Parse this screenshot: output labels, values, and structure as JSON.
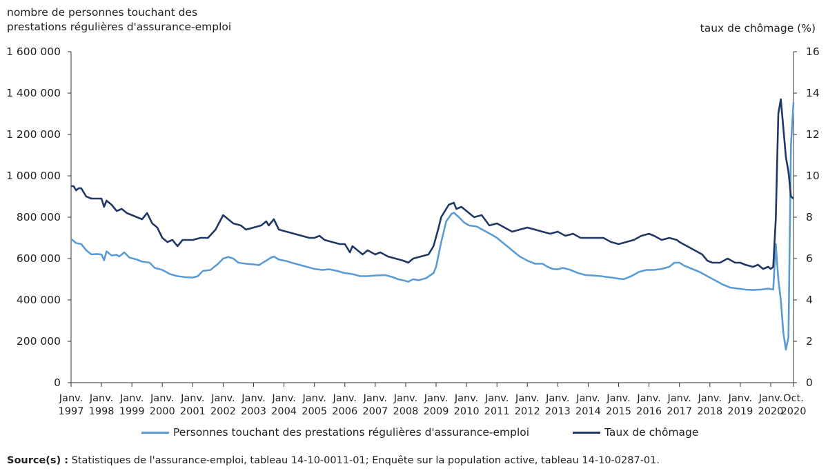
{
  "chart_data": {
    "type": "line",
    "title": "",
    "ylabel": "nombre de personnes touchant des prestations régulières d'assurance-emploi",
    "y2label": "taux de chômage (%)",
    "ylim": [
      0,
      1600000
    ],
    "y2lim": [
      0,
      16
    ],
    "yticks": [
      "0",
      "200 000",
      "400 000",
      "600 000",
      "800 000",
      "1 000 000",
      "1 200 000",
      "1 400 000",
      "1 600 000"
    ],
    "y2ticks": [
      "0",
      "2",
      "4",
      "6",
      "8",
      "10",
      "12",
      "14",
      "16"
    ],
    "xticks": [
      {
        "label1": "Janv.",
        "label2": "1997"
      },
      {
        "label1": "Janv.",
        "label2": "1998"
      },
      {
        "label1": "Janv.",
        "label2": "1999"
      },
      {
        "label1": "Janv.",
        "label2": "2000"
      },
      {
        "label1": "Janv.",
        "label2": "2001"
      },
      {
        "label1": "Janv.",
        "label2": "2002"
      },
      {
        "label1": "Janv.",
        "label2": "2003"
      },
      {
        "label1": "Janv.",
        "label2": "2004"
      },
      {
        "label1": "Janv.",
        "label2": "2005"
      },
      {
        "label1": "Janv.",
        "label2": "2006"
      },
      {
        "label1": "Janv.",
        "label2": "2007"
      },
      {
        "label1": "Janv.",
        "label2": "2008"
      },
      {
        "label1": "Janv.",
        "label2": "2009"
      },
      {
        "label1": "Janv.",
        "label2": "2010"
      },
      {
        "label1": "Janv.",
        "label2": "2011"
      },
      {
        "label1": "Janv.",
        "label2": "2012"
      },
      {
        "label1": "Janv.",
        "label2": "2013"
      },
      {
        "label1": "Janv.",
        "label2": "2014"
      },
      {
        "label1": "Janv.",
        "label2": "2015"
      },
      {
        "label1": "Janv.",
        "label2": "2016"
      },
      {
        "label1": "Janv.",
        "label2": "2017"
      },
      {
        "label1": "Janv.",
        "label2": "2018"
      },
      {
        "label1": "Janv.",
        "label2": "2019"
      },
      {
        "label1": "Janv.",
        "label2": "2020"
      },
      {
        "label1": "Oct.",
        "label2": "2020"
      }
    ],
    "x_start": "1997-01",
    "x_end": "2020-10",
    "legend_placement": "bottom",
    "grid": false,
    "series": [
      {
        "name": "Personnes touchant des prestations régulières d'assurance-emploi",
        "axis": "left",
        "color": "#5b9bd5",
        "points": [
          [
            "1997-01",
            695000
          ],
          [
            "1997-03",
            675000
          ],
          [
            "1997-05",
            670000
          ],
          [
            "1997-07",
            640000
          ],
          [
            "1997-09",
            620000
          ],
          [
            "1997-11",
            622000
          ],
          [
            "1998-01",
            620000
          ],
          [
            "1998-02",
            592000
          ],
          [
            "1998-03",
            635000
          ],
          [
            "1998-05",
            615000
          ],
          [
            "1998-07",
            618000
          ],
          [
            "1998-08",
            610000
          ],
          [
            "1998-10",
            630000
          ],
          [
            "1998-12",
            605000
          ],
          [
            "1999-03",
            595000
          ],
          [
            "1999-05",
            585000
          ],
          [
            "1999-08",
            580000
          ],
          [
            "1999-10",
            555000
          ],
          [
            "2000-01",
            545000
          ],
          [
            "2000-04",
            525000
          ],
          [
            "2000-07",
            515000
          ],
          [
            "2000-10",
            510000
          ],
          [
            "2001-01",
            508000
          ],
          [
            "2001-03",
            515000
          ],
          [
            "2001-05",
            540000
          ],
          [
            "2001-08",
            545000
          ],
          [
            "2001-11",
            575000
          ],
          [
            "2002-01",
            600000
          ],
          [
            "2002-03",
            608000
          ],
          [
            "2002-05",
            600000
          ],
          [
            "2002-07",
            580000
          ],
          [
            "2002-10",
            575000
          ],
          [
            "2003-01",
            572000
          ],
          [
            "2003-03",
            568000
          ],
          [
            "2003-06",
            590000
          ],
          [
            "2003-08",
            605000
          ],
          [
            "2003-09",
            610000
          ],
          [
            "2003-11",
            595000
          ],
          [
            "2004-02",
            588000
          ],
          [
            "2004-04",
            580000
          ],
          [
            "2004-07",
            570000
          ],
          [
            "2004-10",
            560000
          ],
          [
            "2005-01",
            550000
          ],
          [
            "2005-04",
            545000
          ],
          [
            "2005-07",
            548000
          ],
          [
            "2005-10",
            540000
          ],
          [
            "2006-01",
            530000
          ],
          [
            "2006-04",
            525000
          ],
          [
            "2006-07",
            515000
          ],
          [
            "2006-10",
            515000
          ],
          [
            "2007-01",
            518000
          ],
          [
            "2007-05",
            520000
          ],
          [
            "2007-08",
            510000
          ],
          [
            "2007-10",
            500000
          ],
          [
            "2008-01",
            492000
          ],
          [
            "2008-02",
            488000
          ],
          [
            "2008-04",
            500000
          ],
          [
            "2008-06",
            495000
          ],
          [
            "2008-09",
            505000
          ],
          [
            "2008-12",
            530000
          ],
          [
            "2009-01",
            560000
          ],
          [
            "2009-03",
            680000
          ],
          [
            "2009-05",
            780000
          ],
          [
            "2009-07",
            815000
          ],
          [
            "2009-08",
            822000
          ],
          [
            "2009-10",
            800000
          ],
          [
            "2009-12",
            775000
          ],
          [
            "2010-02",
            760000
          ],
          [
            "2010-05",
            755000
          ],
          [
            "2010-08",
            735000
          ],
          [
            "2010-11",
            715000
          ],
          [
            "2011-01",
            700000
          ],
          [
            "2011-04",
            670000
          ],
          [
            "2011-07",
            640000
          ],
          [
            "2011-10",
            610000
          ],
          [
            "2012-01",
            590000
          ],
          [
            "2012-04",
            575000
          ],
          [
            "2012-07",
            575000
          ],
          [
            "2012-09",
            560000
          ],
          [
            "2012-11",
            550000
          ],
          [
            "2013-01",
            548000
          ],
          [
            "2013-03",
            555000
          ],
          [
            "2013-06",
            545000
          ],
          [
            "2013-09",
            530000
          ],
          [
            "2013-12",
            520000
          ],
          [
            "2014-03",
            518000
          ],
          [
            "2014-06",
            515000
          ],
          [
            "2014-09",
            510000
          ],
          [
            "2014-12",
            505000
          ],
          [
            "2015-03",
            500000
          ],
          [
            "2015-06",
            515000
          ],
          [
            "2015-09",
            535000
          ],
          [
            "2015-12",
            545000
          ],
          [
            "2016-03",
            545000
          ],
          [
            "2016-06",
            550000
          ],
          [
            "2016-09",
            560000
          ],
          [
            "2016-11",
            580000
          ],
          [
            "2017-01",
            580000
          ],
          [
            "2017-03",
            565000
          ],
          [
            "2017-06",
            550000
          ],
          [
            "2017-09",
            535000
          ],
          [
            "2017-12",
            515000
          ],
          [
            "2018-03",
            495000
          ],
          [
            "2018-06",
            475000
          ],
          [
            "2018-09",
            460000
          ],
          [
            "2018-12",
            455000
          ],
          [
            "2019-03",
            450000
          ],
          [
            "2019-06",
            448000
          ],
          [
            "2019-09",
            450000
          ],
          [
            "2019-12",
            455000
          ],
          [
            "2020-01",
            452000
          ],
          [
            "2020-02",
            450000
          ],
          [
            "2020-03",
            670000
          ],
          [
            "2020-04",
            500000
          ],
          [
            "2020-05",
            400000
          ],
          [
            "2020-06",
            240000
          ],
          [
            "2020-07",
            160000
          ],
          [
            "2020-08",
            220000
          ],
          [
            "2020-09",
            1150000
          ],
          [
            "2020-10",
            1355000
          ]
        ]
      },
      {
        "name": "Taux de chômage",
        "axis": "right",
        "color": "#1f3864",
        "points": [
          [
            "1997-01",
            9.5
          ],
          [
            "1997-02",
            9.5
          ],
          [
            "1997-03",
            9.3
          ],
          [
            "1997-04",
            9.4
          ],
          [
            "1997-05",
            9.4
          ],
          [
            "1997-07",
            9.0
          ],
          [
            "1997-09",
            8.9
          ],
          [
            "1997-11",
            8.9
          ],
          [
            "1998-01",
            8.9
          ],
          [
            "1998-02",
            8.5
          ],
          [
            "1998-03",
            8.8
          ],
          [
            "1998-05",
            8.6
          ],
          [
            "1998-07",
            8.3
          ],
          [
            "1998-09",
            8.4
          ],
          [
            "1998-11",
            8.2
          ],
          [
            "1999-01",
            8.1
          ],
          [
            "1999-03",
            8.0
          ],
          [
            "1999-05",
            7.9
          ],
          [
            "1999-07",
            8.2
          ],
          [
            "1999-09",
            7.7
          ],
          [
            "1999-11",
            7.5
          ],
          [
            "2000-01",
            7.0
          ],
          [
            "2000-03",
            6.8
          ],
          [
            "2000-05",
            6.9
          ],
          [
            "2000-07",
            6.6
          ],
          [
            "2000-09",
            6.9
          ],
          [
            "2000-11",
            6.9
          ],
          [
            "2001-01",
            6.9
          ],
          [
            "2001-04",
            7.0
          ],
          [
            "2001-07",
            7.0
          ],
          [
            "2001-10",
            7.4
          ],
          [
            "2002-01",
            8.1
          ],
          [
            "2002-03",
            7.9
          ],
          [
            "2002-05",
            7.7
          ],
          [
            "2002-08",
            7.6
          ],
          [
            "2002-10",
            7.4
          ],
          [
            "2003-01",
            7.5
          ],
          [
            "2003-04",
            7.6
          ],
          [
            "2003-06",
            7.8
          ],
          [
            "2003-07",
            7.6
          ],
          [
            "2003-09",
            7.9
          ],
          [
            "2003-11",
            7.4
          ],
          [
            "2004-02",
            7.3
          ],
          [
            "2004-05",
            7.2
          ],
          [
            "2004-08",
            7.1
          ],
          [
            "2004-11",
            7.0
          ],
          [
            "2005-01",
            7.0
          ],
          [
            "2005-03",
            7.1
          ],
          [
            "2005-05",
            6.9
          ],
          [
            "2005-08",
            6.8
          ],
          [
            "2005-11",
            6.7
          ],
          [
            "2006-01",
            6.7
          ],
          [
            "2006-03",
            6.3
          ],
          [
            "2006-04",
            6.6
          ],
          [
            "2006-06",
            6.4
          ],
          [
            "2006-08",
            6.2
          ],
          [
            "2006-10",
            6.4
          ],
          [
            "2007-01",
            6.2
          ],
          [
            "2007-03",
            6.3
          ],
          [
            "2007-06",
            6.1
          ],
          [
            "2007-09",
            6.0
          ],
          [
            "2007-12",
            5.9
          ],
          [
            "2008-02",
            5.8
          ],
          [
            "2008-04",
            6.0
          ],
          [
            "2008-07",
            6.1
          ],
          [
            "2008-10",
            6.2
          ],
          [
            "2008-12",
            6.6
          ],
          [
            "2009-02",
            7.5
          ],
          [
            "2009-03",
            8.0
          ],
          [
            "2009-04",
            8.2
          ],
          [
            "2009-06",
            8.6
          ],
          [
            "2009-08",
            8.7
          ],
          [
            "2009-09",
            8.4
          ],
          [
            "2009-11",
            8.5
          ],
          [
            "2010-01",
            8.3
          ],
          [
            "2010-04",
            8.0
          ],
          [
            "2010-07",
            8.1
          ],
          [
            "2010-10",
            7.6
          ],
          [
            "2011-01",
            7.7
          ],
          [
            "2011-04",
            7.5
          ],
          [
            "2011-07",
            7.3
          ],
          [
            "2011-10",
            7.4
          ],
          [
            "2012-01",
            7.5
          ],
          [
            "2012-04",
            7.4
          ],
          [
            "2012-07",
            7.3
          ],
          [
            "2012-10",
            7.2
          ],
          [
            "2013-01",
            7.3
          ],
          [
            "2013-04",
            7.1
          ],
          [
            "2013-07",
            7.2
          ],
          [
            "2013-10",
            7.0
          ],
          [
            "2014-01",
            7.0
          ],
          [
            "2014-04",
            7.0
          ],
          [
            "2014-07",
            7.0
          ],
          [
            "2014-10",
            6.8
          ],
          [
            "2015-01",
            6.7
          ],
          [
            "2015-04",
            6.8
          ],
          [
            "2015-07",
            6.9
          ],
          [
            "2015-10",
            7.1
          ],
          [
            "2016-01",
            7.2
          ],
          [
            "2016-03",
            7.1
          ],
          [
            "2016-06",
            6.9
          ],
          [
            "2016-09",
            7.0
          ],
          [
            "2016-12",
            6.9
          ],
          [
            "2017-01",
            6.8
          ],
          [
            "2017-04",
            6.6
          ],
          [
            "2017-07",
            6.4
          ],
          [
            "2017-10",
            6.2
          ],
          [
            "2017-12",
            5.9
          ],
          [
            "2018-02",
            5.8
          ],
          [
            "2018-05",
            5.8
          ],
          [
            "2018-08",
            6.0
          ],
          [
            "2018-11",
            5.8
          ],
          [
            "2019-01",
            5.8
          ],
          [
            "2019-03",
            5.7
          ],
          [
            "2019-06",
            5.6
          ],
          [
            "2019-08",
            5.7
          ],
          [
            "2019-10",
            5.5
          ],
          [
            "2019-12",
            5.6
          ],
          [
            "2020-01",
            5.5
          ],
          [
            "2020-02",
            5.6
          ],
          [
            "2020-03",
            7.9
          ],
          [
            "2020-04",
            13.0
          ],
          [
            "2020-05",
            13.7
          ],
          [
            "2020-06",
            12.3
          ],
          [
            "2020-07",
            10.9
          ],
          [
            "2020-08",
            10.2
          ],
          [
            "2020-09",
            9.0
          ],
          [
            "2020-10",
            8.9
          ]
        ]
      }
    ]
  },
  "source": {
    "label": "Source(s) :",
    "text": " Statistiques de l'assurance-emploi, tableau 14-10-0011-01; Enquête sur la population active, tableau 14-10-0287-01."
  }
}
